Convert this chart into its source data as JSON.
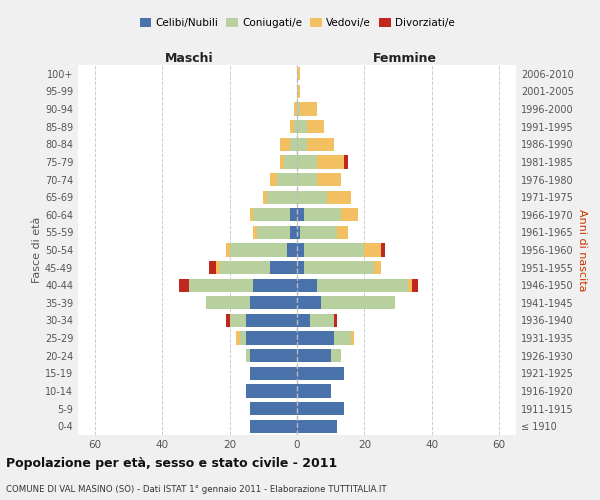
{
  "age_groups": [
    "100+",
    "95-99",
    "90-94",
    "85-89",
    "80-84",
    "75-79",
    "70-74",
    "65-69",
    "60-64",
    "55-59",
    "50-54",
    "45-49",
    "40-44",
    "35-39",
    "30-34",
    "25-29",
    "20-24",
    "15-19",
    "10-14",
    "5-9",
    "0-4"
  ],
  "birth_years": [
    "≤ 1910",
    "1911-1915",
    "1916-1920",
    "1921-1925",
    "1926-1930",
    "1931-1935",
    "1936-1940",
    "1941-1945",
    "1946-1950",
    "1951-1955",
    "1956-1960",
    "1961-1965",
    "1966-1970",
    "1971-1975",
    "1976-1980",
    "1981-1985",
    "1986-1990",
    "1991-1995",
    "1996-2000",
    "2001-2005",
    "2006-2010"
  ],
  "maschi": {
    "celibi": [
      0,
      0,
      0,
      0,
      0,
      0,
      0,
      0,
      2,
      2,
      3,
      8,
      13,
      14,
      15,
      15,
      14,
      14,
      15,
      14,
      14
    ],
    "coniugati": [
      0,
      0,
      0,
      1,
      2,
      4,
      6,
      9,
      11,
      10,
      17,
      15,
      19,
      13,
      5,
      2,
      1,
      0,
      0,
      0,
      0
    ],
    "vedovi": [
      0,
      0,
      1,
      1,
      3,
      1,
      2,
      1,
      1,
      1,
      1,
      1,
      0,
      0,
      0,
      1,
      0,
      0,
      0,
      0,
      0
    ],
    "divorziati": [
      0,
      0,
      0,
      0,
      0,
      0,
      0,
      0,
      0,
      0,
      0,
      2,
      3,
      0,
      1,
      0,
      0,
      0,
      0,
      0,
      0
    ]
  },
  "femmine": {
    "nubili": [
      0,
      0,
      0,
      0,
      0,
      0,
      0,
      0,
      2,
      1,
      2,
      2,
      6,
      7,
      4,
      11,
      10,
      14,
      10,
      14,
      12
    ],
    "coniugate": [
      0,
      0,
      1,
      3,
      3,
      6,
      6,
      9,
      11,
      11,
      18,
      21,
      27,
      22,
      7,
      5,
      3,
      0,
      0,
      0,
      0
    ],
    "vedove": [
      1,
      1,
      5,
      5,
      8,
      8,
      7,
      7,
      5,
      3,
      5,
      2,
      1,
      0,
      0,
      1,
      0,
      0,
      0,
      0,
      0
    ],
    "divorziate": [
      0,
      0,
      0,
      0,
      0,
      1,
      0,
      0,
      0,
      0,
      1,
      0,
      2,
      0,
      1,
      0,
      0,
      0,
      0,
      0,
      0
    ]
  },
  "colors": {
    "celibi": "#4a72aa",
    "coniugati": "#b8d09e",
    "vedovi": "#f2c060",
    "divorziati": "#c0281e"
  },
  "xlim": 65,
  "title": "Popolazione per età, sesso e stato civile - 2011",
  "subtitle": "COMUNE DI VAL MASINO (SO) - Dati ISTAT 1° gennaio 2011 - Elaborazione TUTTITALIA.IT",
  "ylabel": "Fasce di età",
  "ylabel_right": "Anni di nascita",
  "xlabel_left": "Maschi",
  "xlabel_right": "Femmine",
  "bg_color": "#f0f0f0",
  "plot_bg": "#ffffff"
}
